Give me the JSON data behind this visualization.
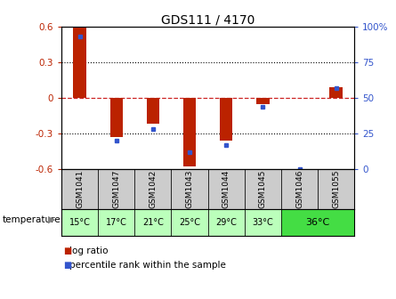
{
  "title": "GDS111 / 4170",
  "samples": [
    "GSM1041",
    "GSM1047",
    "GSM1042",
    "GSM1043",
    "GSM1044",
    "GSM1045",
    "GSM1046",
    "GSM1055"
  ],
  "log_ratios": [
    0.6,
    -0.33,
    -0.22,
    -0.58,
    -0.36,
    -0.055,
    0.0,
    0.09
  ],
  "percentile_ranks": [
    93,
    20,
    28,
    12,
    17,
    44,
    0,
    57
  ],
  "ylim": [
    -0.6,
    0.6
  ],
  "yticks_left": [
    -0.6,
    -0.3,
    0,
    0.3,
    0.6
  ],
  "ytick_labels_left": [
    "-0.6",
    "-0.3",
    "0",
    "0.3",
    "0.6"
  ],
  "right_yticks_pct": [
    0,
    25,
    50,
    75,
    100
  ],
  "right_ytick_labels": [
    "0",
    "25",
    "50",
    "75",
    "100%"
  ],
  "bar_color": "#bb2200",
  "dot_color": "#3355cc",
  "zero_line_color": "#cc2222",
  "grid_color": "#000000",
  "bg_color": "#ffffff",
  "sample_bg": "#cccccc",
  "temp_colors_light": "#bbffbb",
  "temp_colors_bright": "#44dd44",
  "temp_labels": [
    "15°C",
    "17°C",
    "21°C",
    "25°C",
    "29°C",
    "33°C"
  ],
  "temp_merged_label": "36°C",
  "temp_merged_indices": [
    6,
    7
  ],
  "legend_log_ratio": "log ratio",
  "legend_percentile": "percentile rank within the sample"
}
